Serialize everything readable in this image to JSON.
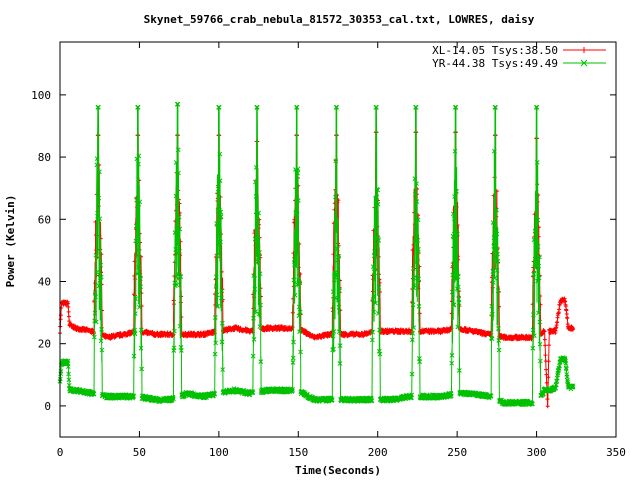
{
  "chart_data": {
    "type": "line",
    "title": "Skynet_59766_crab_nebula_81572_30353_cal.txt, LOWRES, daisy",
    "xlabel": "Time(Seconds)",
    "ylabel": "Power (Kelvin)",
    "xlim": [
      0,
      350
    ],
    "ylim": [
      -10,
      117
    ],
    "xticks": [
      0,
      50,
      100,
      150,
      200,
      250,
      300,
      350
    ],
    "yticks": [
      0,
      20,
      40,
      60,
      80,
      100
    ],
    "grid": false,
    "legend_position": "top-right",
    "series": [
      {
        "name": "XL-14.05 Tsys:38.50",
        "color": "#ff0000",
        "marker": "+",
        "baseline_points": [
          [
            0,
            24
          ],
          [
            1,
            33
          ],
          [
            5,
            33
          ],
          [
            6,
            26
          ],
          [
            10,
            25
          ],
          [
            20,
            24
          ],
          [
            30,
            22
          ],
          [
            40,
            23
          ],
          [
            50,
            24
          ],
          [
            60,
            23
          ],
          [
            70,
            23
          ],
          [
            80,
            23
          ],
          [
            90,
            23
          ],
          [
            100,
            24
          ],
          [
            110,
            25
          ],
          [
            120,
            24
          ],
          [
            130,
            25
          ],
          [
            140,
            25
          ],
          [
            150,
            25
          ],
          [
            160,
            22
          ],
          [
            170,
            23
          ],
          [
            180,
            23
          ],
          [
            190,
            23
          ],
          [
            200,
            24
          ],
          [
            210,
            24
          ],
          [
            220,
            24
          ],
          [
            230,
            24
          ],
          [
            240,
            24
          ],
          [
            250,
            25
          ],
          [
            260,
            24
          ],
          [
            270,
            23
          ],
          [
            280,
            22
          ],
          [
            290,
            22
          ],
          [
            300,
            22
          ],
          [
            305,
            24
          ],
          [
            307,
            0
          ],
          [
            308,
            24
          ],
          [
            312,
            24
          ],
          [
            315,
            34
          ],
          [
            318,
            34
          ],
          [
            320,
            25
          ],
          [
            323,
            25
          ]
        ],
        "peaks": [
          {
            "x": 24,
            "y": 87
          },
          {
            "x": 49,
            "y": 87
          },
          {
            "x": 74,
            "y": 87
          },
          {
            "x": 100,
            "y": 87
          },
          {
            "x": 124,
            "y": 85
          },
          {
            "x": 149,
            "y": 87
          },
          {
            "x": 174,
            "y": 87
          },
          {
            "x": 199,
            "y": 88
          },
          {
            "x": 224,
            "y": 88
          },
          {
            "x": 249,
            "y": 88
          },
          {
            "x": 274,
            "y": 87
          },
          {
            "x": 300,
            "y": 86
          }
        ]
      },
      {
        "name": "YR-44.38 Tsys:49.49",
        "color": "#00c000",
        "marker": "x",
        "baseline_points": [
          [
            0,
            8
          ],
          [
            1,
            14
          ],
          [
            5,
            14
          ],
          [
            6,
            5
          ],
          [
            10,
            5
          ],
          [
            20,
            4
          ],
          [
            30,
            3
          ],
          [
            40,
            3
          ],
          [
            50,
            3
          ],
          [
            60,
            2
          ],
          [
            70,
            2
          ],
          [
            80,
            4
          ],
          [
            90,
            3
          ],
          [
            100,
            4
          ],
          [
            110,
            5
          ],
          [
            120,
            4
          ],
          [
            130,
            5
          ],
          [
            140,
            5
          ],
          [
            150,
            5
          ],
          [
            160,
            2
          ],
          [
            170,
            2
          ],
          [
            180,
            2
          ],
          [
            190,
            2
          ],
          [
            200,
            2
          ],
          [
            210,
            2
          ],
          [
            220,
            3
          ],
          [
            230,
            3
          ],
          [
            240,
            3
          ],
          [
            250,
            4
          ],
          [
            260,
            4
          ],
          [
            270,
            3
          ],
          [
            280,
            1
          ],
          [
            290,
            1
          ],
          [
            300,
            1
          ],
          [
            305,
            5
          ],
          [
            308,
            5
          ],
          [
            312,
            6
          ],
          [
            315,
            15
          ],
          [
            318,
            15
          ],
          [
            320,
            6
          ],
          [
            323,
            6
          ]
        ],
        "peaks": [
          {
            "x": 24,
            "y": 96
          },
          {
            "x": 49,
            "y": 96
          },
          {
            "x": 74,
            "y": 97
          },
          {
            "x": 100,
            "y": 96
          },
          {
            "x": 124,
            "y": 96
          },
          {
            "x": 149,
            "y": 96
          },
          {
            "x": 174,
            "y": 96
          },
          {
            "x": 199,
            "y": 96
          },
          {
            "x": 224,
            "y": 96
          },
          {
            "x": 249,
            "y": 96
          },
          {
            "x": 274,
            "y": 96
          },
          {
            "x": 300,
            "y": 96
          }
        ]
      }
    ]
  }
}
